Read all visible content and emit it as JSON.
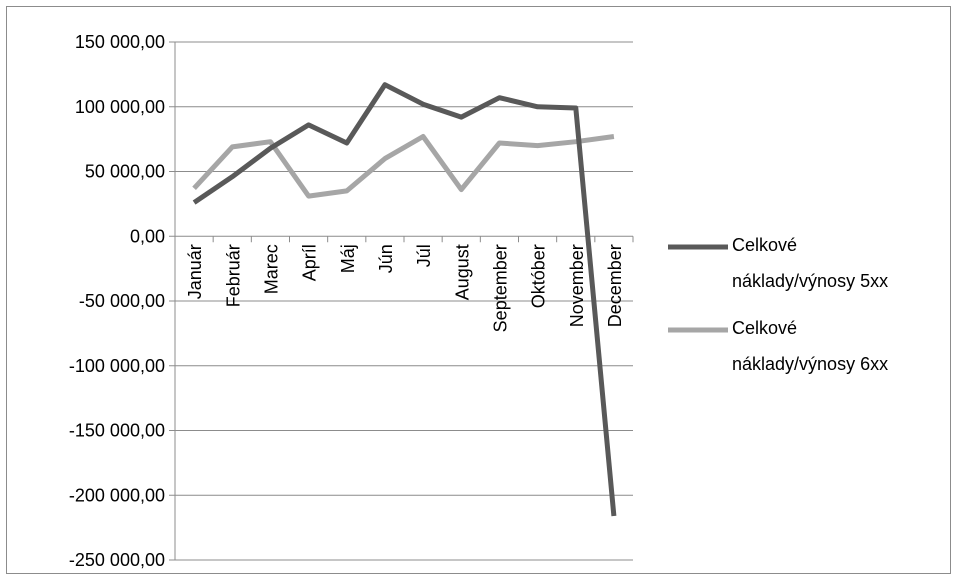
{
  "chart_data": {
    "type": "line",
    "title": "",
    "xlabel": "",
    "ylabel": "",
    "categories": [
      "Január",
      "Február",
      "Marec",
      "Apríl",
      "Máj",
      "Jún",
      "Júl",
      "August",
      "September",
      "Október",
      "November",
      "December"
    ],
    "ylim": [
      -250000,
      150000
    ],
    "ytick_values": [
      150000,
      100000,
      50000,
      0,
      -50000,
      -100000,
      -150000,
      -200000,
      -250000
    ],
    "ytick_labels": [
      "150 000,00",
      "100 000,00",
      "50 000,00",
      "0,00",
      "-50 000,00",
      "-100 000,00",
      "-150 000,00",
      "-200 000,00",
      "-250 000,00"
    ],
    "grid": true,
    "legend_position": "right",
    "series": [
      {
        "name": "Celkové náklady/výnosy 5xx",
        "color": "#595959",
        "values": [
          26000,
          46000,
          68000,
          86000,
          72000,
          117000,
          102000,
          92000,
          107000,
          100000,
          99000,
          -216000
        ]
      },
      {
        "name": "Celkové náklady/výnosy 6xx",
        "color": "#a6a6a6",
        "values": [
          37000,
          69000,
          73000,
          31000,
          35000,
          60000,
          77000,
          36000,
          72000,
          70000,
          73000,
          77000
        ]
      }
    ]
  },
  "legend": {
    "items": [
      {
        "line1": "Celkové",
        "line2": "náklady/výnosy 5xx",
        "color": "#595959"
      },
      {
        "line1": "Celkové",
        "line2": "náklady/výnosy 6xx",
        "color": "#a6a6a6"
      }
    ]
  }
}
